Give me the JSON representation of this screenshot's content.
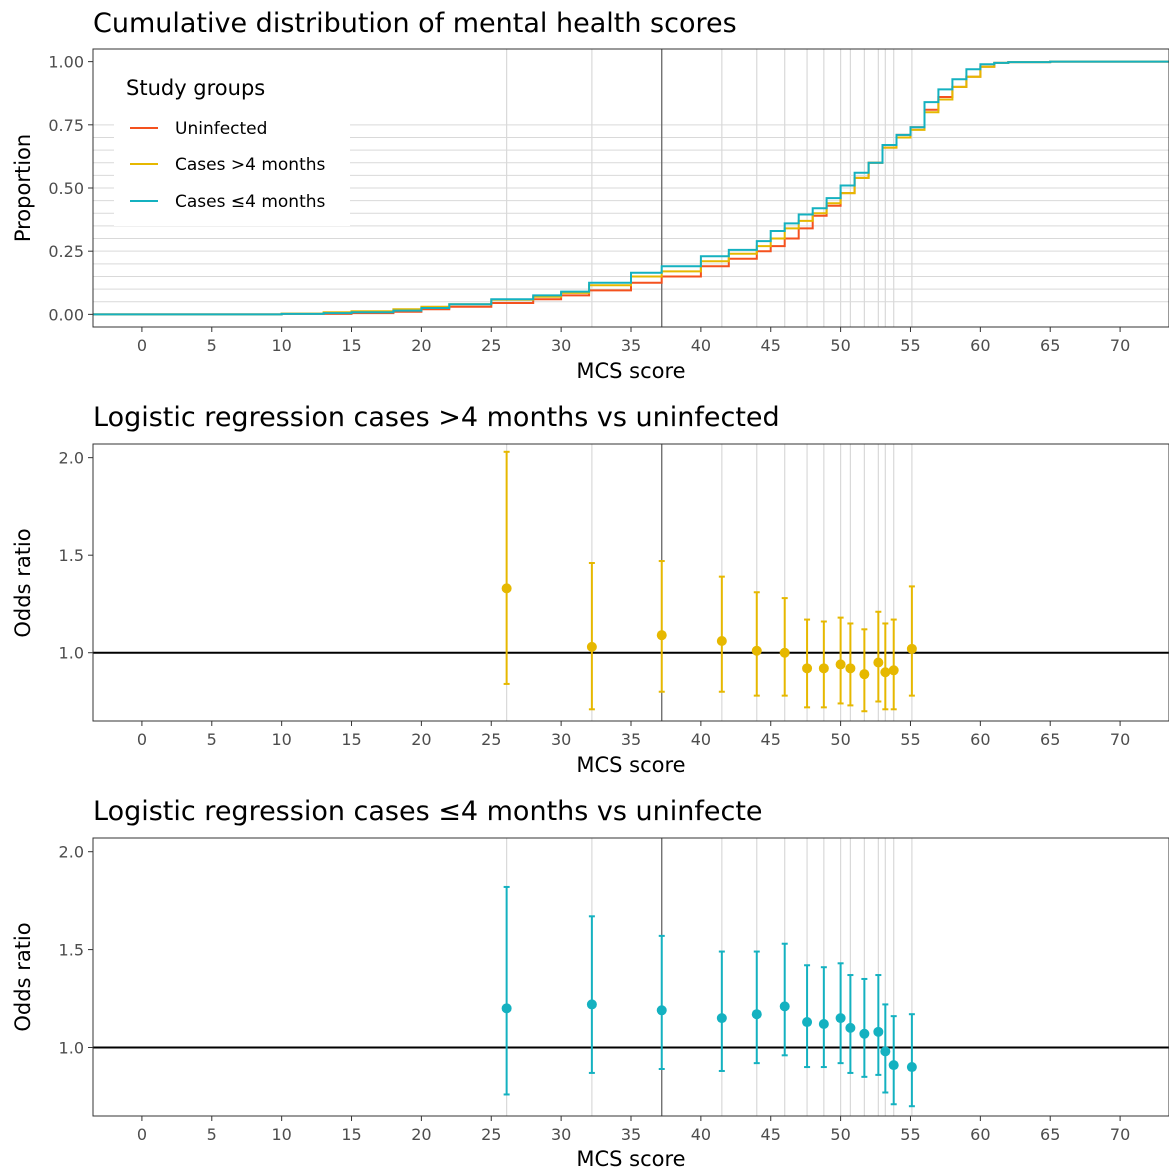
{
  "colors": {
    "uninfected": "#F4511E",
    "cases_gt4": "#E6B800",
    "cases_le4": "#14B1C0",
    "grid": "#d9d9d9",
    "refline": "#666666",
    "axis_text": "#4d4d4d"
  },
  "chart_data": [
    {
      "type": "line",
      "title": "Cumulative distribution of mental health scores",
      "xlabel": "MCS score",
      "ylabel": "Proportion",
      "xlim": [
        -3.5,
        73.5
      ],
      "ylim": [
        -0.05,
        1.05
      ],
      "x_ticks": [
        0,
        5,
        10,
        15,
        20,
        25,
        30,
        35,
        40,
        45,
        50,
        55,
        60,
        65,
        70
      ],
      "y_ticks": [
        0,
        0.25,
        0.5,
        0.75,
        1.0
      ],
      "y_tick_labels": [
        "0.00",
        "0.25",
        "0.50",
        "0.75",
        "1.00"
      ],
      "vertical_gridlines": [
        26.1,
        32.2,
        41.5,
        44.0,
        46.0,
        47.6,
        48.8,
        50.0,
        50.7,
        51.7,
        52.7,
        53.2,
        53.8,
        55.1
      ],
      "reference_vline": 37.2,
      "horizontal_gridlines": [
        0.05,
        0.1,
        0.15,
        0.2,
        0.25,
        0.3,
        0.35,
        0.4,
        0.45,
        0.5,
        0.55,
        0.6,
        0.65,
        0.7,
        0.75
      ],
      "legend": {
        "title": "Study groups",
        "position": "top-left",
        "items": [
          {
            "label": "Uninfected",
            "color_key": "uninfected"
          },
          {
            "label": "Cases >4 months",
            "color_key": "cases_gt4"
          },
          {
            "label": "Cases ≤4 months",
            "color_key": "cases_le4"
          }
        ]
      },
      "series": [
        {
          "name": "Uninfected",
          "color_key": "uninfected",
          "x": [
            -3.5,
            5,
            10,
            15,
            18,
            20,
            22,
            25,
            28,
            30,
            32,
            35,
            37.2,
            40,
            42,
            44,
            45,
            46,
            47,
            48,
            49,
            50,
            51,
            52,
            53,
            54,
            55,
            56,
            57,
            58,
            59,
            60,
            61,
            62,
            65,
            73.5
          ],
          "y": [
            0,
            0,
            0.002,
            0.005,
            0.01,
            0.02,
            0.03,
            0.045,
            0.06,
            0.075,
            0.095,
            0.125,
            0.15,
            0.19,
            0.22,
            0.25,
            0.27,
            0.3,
            0.34,
            0.39,
            0.43,
            0.48,
            0.54,
            0.6,
            0.66,
            0.71,
            0.74,
            0.81,
            0.86,
            0.9,
            0.94,
            0.98,
            0.995,
            0.998,
            1.0,
            1.0
          ]
        },
        {
          "name": "Cases >4 months",
          "color_key": "cases_gt4",
          "x": [
            -3.5,
            5,
            10,
            13,
            15,
            18,
            20,
            22,
            25,
            28,
            30,
            32,
            35,
            37.2,
            40,
            42,
            44,
            45,
            46,
            47,
            48,
            49,
            50,
            51,
            52,
            53,
            54,
            55,
            56,
            57,
            58,
            59,
            60,
            61,
            62,
            65,
            73.5
          ],
          "y": [
            0,
            0,
            0.003,
            0.008,
            0.012,
            0.02,
            0.03,
            0.04,
            0.058,
            0.07,
            0.085,
            0.115,
            0.15,
            0.17,
            0.21,
            0.24,
            0.27,
            0.3,
            0.34,
            0.37,
            0.4,
            0.44,
            0.48,
            0.54,
            0.6,
            0.66,
            0.7,
            0.73,
            0.8,
            0.85,
            0.9,
            0.94,
            0.98,
            0.995,
            0.998,
            1.0,
            1.0
          ]
        },
        {
          "name": "Cases ≤4 months",
          "color_key": "cases_le4",
          "x": [
            -3.5,
            5,
            10,
            13,
            15,
            18,
            20,
            22,
            25,
            28,
            30,
            32,
            35,
            37.2,
            40,
            42,
            44,
            45,
            46,
            47,
            48,
            49,
            50,
            51,
            52,
            53,
            54,
            55,
            56,
            57,
            58,
            59,
            60,
            61,
            62,
            65,
            73.5
          ],
          "y": [
            0,
            0,
            0.002,
            0.005,
            0.008,
            0.015,
            0.025,
            0.04,
            0.06,
            0.075,
            0.09,
            0.125,
            0.165,
            0.19,
            0.23,
            0.255,
            0.29,
            0.33,
            0.36,
            0.395,
            0.42,
            0.46,
            0.51,
            0.56,
            0.6,
            0.67,
            0.71,
            0.74,
            0.84,
            0.89,
            0.93,
            0.97,
            0.99,
            0.995,
            0.998,
            1.0,
            1.0
          ]
        }
      ]
    },
    {
      "type": "scatter",
      "title": "Logistic regression cases >4 months vs uninfected",
      "xlabel": "MCS score",
      "ylabel": "Odds ratio",
      "xlim": [
        -3.5,
        73.5
      ],
      "ylim": [
        0.65,
        2.07
      ],
      "x_ticks": [
        0,
        5,
        10,
        15,
        20,
        25,
        30,
        35,
        40,
        45,
        50,
        55,
        60,
        65,
        70
      ],
      "y_ticks": [
        1.0,
        1.5,
        2.0
      ],
      "y_tick_labels": [
        "1.0",
        "1.5",
        "2.0"
      ],
      "vertical_gridlines": [
        26.1,
        32.2,
        41.5,
        44.0,
        46.0,
        47.6,
        48.8,
        50.0,
        50.7,
        51.7,
        52.7,
        53.2,
        53.8,
        55.1
      ],
      "reference_vline": 37.2,
      "reference_hline": 1.0,
      "color_key": "cases_gt4",
      "points": [
        {
          "x": 26.1,
          "or": 1.33,
          "lo": 0.84,
          "hi": 2.03
        },
        {
          "x": 32.2,
          "or": 1.03,
          "lo": 0.71,
          "hi": 1.46
        },
        {
          "x": 37.2,
          "or": 1.09,
          "lo": 0.8,
          "hi": 1.47
        },
        {
          "x": 41.5,
          "or": 1.06,
          "lo": 0.8,
          "hi": 1.39
        },
        {
          "x": 44.0,
          "or": 1.01,
          "lo": 0.78,
          "hi": 1.31
        },
        {
          "x": 46.0,
          "or": 1.0,
          "lo": 0.78,
          "hi": 1.28
        },
        {
          "x": 47.6,
          "or": 0.92,
          "lo": 0.72,
          "hi": 1.17
        },
        {
          "x": 48.8,
          "or": 0.92,
          "lo": 0.72,
          "hi": 1.16
        },
        {
          "x": 50.0,
          "or": 0.94,
          "lo": 0.74,
          "hi": 1.18
        },
        {
          "x": 50.7,
          "or": 0.92,
          "lo": 0.73,
          "hi": 1.15
        },
        {
          "x": 51.7,
          "or": 0.89,
          "lo": 0.7,
          "hi": 1.12
        },
        {
          "x": 52.7,
          "or": 0.95,
          "lo": 0.75,
          "hi": 1.21
        },
        {
          "x": 53.2,
          "or": 0.9,
          "lo": 0.71,
          "hi": 1.15
        },
        {
          "x": 53.8,
          "or": 0.91,
          "lo": 0.71,
          "hi": 1.17
        },
        {
          "x": 55.1,
          "or": 1.02,
          "lo": 0.78,
          "hi": 1.34
        }
      ]
    },
    {
      "type": "scatter",
      "title": "Logistic regression cases ≤4 months vs uninfecte",
      "xlabel": "MCS score",
      "ylabel": "Odds ratio",
      "xlim": [
        -3.5,
        73.5
      ],
      "ylim": [
        0.65,
        2.07
      ],
      "x_ticks": [
        0,
        5,
        10,
        15,
        20,
        25,
        30,
        35,
        40,
        45,
        50,
        55,
        60,
        65,
        70
      ],
      "y_ticks": [
        1.0,
        1.5,
        2.0
      ],
      "y_tick_labels": [
        "1.0",
        "1.5",
        "2.0"
      ],
      "vertical_gridlines": [
        26.1,
        32.2,
        41.5,
        44.0,
        46.0,
        47.6,
        48.8,
        50.0,
        50.7,
        51.7,
        52.7,
        53.2,
        53.8,
        55.1
      ],
      "reference_vline": 37.2,
      "reference_hline": 1.0,
      "color_key": "cases_le4",
      "points": [
        {
          "x": 26.1,
          "or": 1.2,
          "lo": 0.76,
          "hi": 1.82
        },
        {
          "x": 32.2,
          "or": 1.22,
          "lo": 0.87,
          "hi": 1.67
        },
        {
          "x": 37.2,
          "or": 1.19,
          "lo": 0.89,
          "hi": 1.57
        },
        {
          "x": 41.5,
          "or": 1.15,
          "lo": 0.88,
          "hi": 1.49
        },
        {
          "x": 44.0,
          "or": 1.17,
          "lo": 0.92,
          "hi": 1.49
        },
        {
          "x": 46.0,
          "or": 1.21,
          "lo": 0.96,
          "hi": 1.53
        },
        {
          "x": 47.6,
          "or": 1.13,
          "lo": 0.9,
          "hi": 1.42
        },
        {
          "x": 48.8,
          "or": 1.12,
          "lo": 0.9,
          "hi": 1.41
        },
        {
          "x": 50.0,
          "or": 1.15,
          "lo": 0.92,
          "hi": 1.43
        },
        {
          "x": 50.7,
          "or": 1.1,
          "lo": 0.87,
          "hi": 1.37
        },
        {
          "x": 51.7,
          "or": 1.07,
          "lo": 0.85,
          "hi": 1.35
        },
        {
          "x": 52.7,
          "or": 1.08,
          "lo": 0.86,
          "hi": 1.37
        },
        {
          "x": 53.2,
          "or": 0.98,
          "lo": 0.77,
          "hi": 1.22
        },
        {
          "x": 53.8,
          "or": 0.91,
          "lo": 0.71,
          "hi": 1.16
        },
        {
          "x": 55.1,
          "or": 0.9,
          "lo": 0.7,
          "hi": 1.17
        }
      ]
    }
  ]
}
